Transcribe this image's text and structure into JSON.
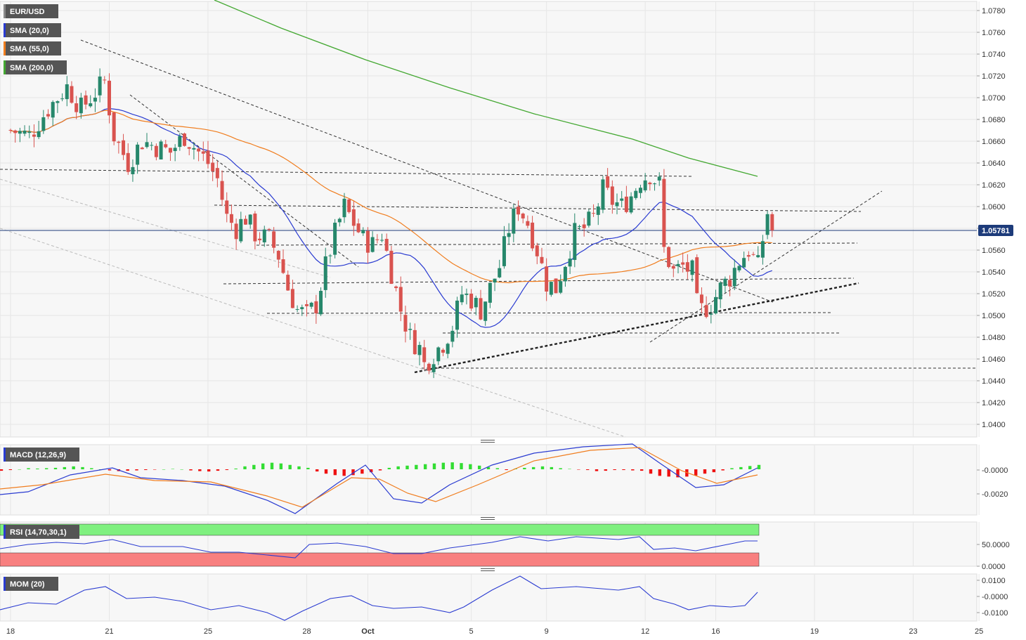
{
  "colors": {
    "up": "#26876b",
    "down": "#d9534f",
    "sma20": "#2a3bd1",
    "sma55": "#f07d1e",
    "sma200": "#44a832",
    "macd": "#2a3bd1",
    "signal": "#f07d1e",
    "hist_up": "#33dd33",
    "hist_down": "#ee1111",
    "rsi": "#2a3bd1",
    "mom": "#2a3bd1",
    "badge_bg": "#555555",
    "price_line": "#1d3b7a"
  },
  "chart_data": [
    {
      "type": "candlestick",
      "panel": "price",
      "symbol": "EUR/USD",
      "indicators": [
        "SMA (20,0)",
        "SMA (55,0)",
        "SMA (200,0)"
      ],
      "last_price": "1.05781",
      "ylim": [
        1.039,
        1.079
      ],
      "y_ticks": [
        "1.0780",
        "1.0760",
        "1.0740",
        "1.0720",
        "1.0700",
        "1.0680",
        "1.0660",
        "1.0640",
        "1.0620",
        "1.0600",
        "1.0580",
        "1.0560",
        "1.0540",
        "1.0520",
        "1.0500",
        "1.0480",
        "1.0460",
        "1.0440",
        "1.0420",
        "1.0400"
      ],
      "x_ticks": [
        {
          "label": "18",
          "idx": 0
        },
        {
          "label": "21",
          "idx": 21
        },
        {
          "label": "25",
          "idx": 42
        },
        {
          "label": "28",
          "idx": 63
        },
        {
          "label": "Oct",
          "idx": 76
        },
        {
          "label": "5",
          "idx": 98
        },
        {
          "label": "9",
          "idx": 114
        },
        {
          "label": "12",
          "idx": 135
        },
        {
          "label": "16",
          "idx": 150
        },
        {
          "label": "19",
          "idx": 171
        },
        {
          "label": "23",
          "idx": 192
        },
        {
          "label": "25",
          "idx": 206
        }
      ],
      "grid": true
    },
    {
      "type": "bar+line",
      "panel": "macd",
      "label": "MACD (12,26,9)",
      "y_ticks": [
        "-0.0000",
        "-0.0020"
      ]
    },
    {
      "type": "line",
      "panel": "rsi",
      "label": "RSI (14,70,30,1)",
      "y_ticks": [
        "50.0000",
        "0.0000"
      ]
    },
    {
      "type": "line",
      "panel": "mom",
      "label": "MOM (20)",
      "y_ticks": [
        "0.0100",
        "-0.0000",
        "-0.0100"
      ]
    }
  ]
}
